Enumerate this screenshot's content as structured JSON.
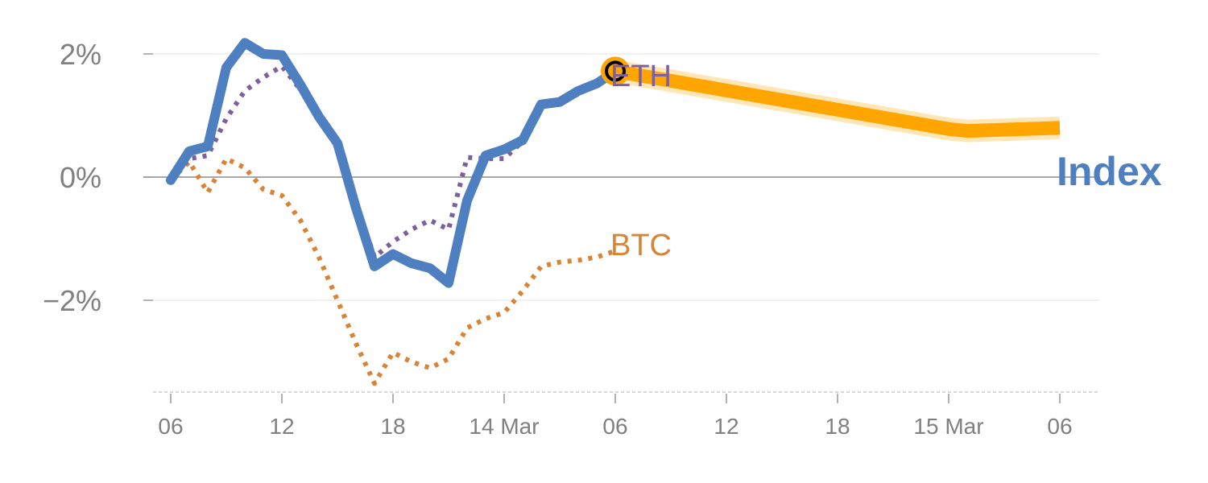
{
  "chart_data": {
    "type": "line",
    "title": "",
    "xlabel": "",
    "ylabel": "",
    "ylim": [
      -3.5,
      2.25
    ],
    "grid": true,
    "legend": "none (direct labels)",
    "x_ticks": [
      {
        "x": 0,
        "label": "06"
      },
      {
        "x": 6,
        "label": "12"
      },
      {
        "x": 12,
        "label": "18"
      },
      {
        "x": 18,
        "label": "14 Mar"
      },
      {
        "x": 24,
        "label": "06"
      },
      {
        "x": 30,
        "label": "12"
      },
      {
        "x": 36,
        "label": "18"
      },
      {
        "x": 42,
        "label": "15 Mar"
      },
      {
        "x": 48,
        "label": "06"
      }
    ],
    "y_ticks": [
      {
        "y": 2,
        "label": "2%"
      },
      {
        "y": 0,
        "label": "0%"
      },
      {
        "y": -2,
        "label": "−2%"
      }
    ],
    "xlim": [
      -1,
      50
    ],
    "series": [
      {
        "name": "Index",
        "color": "#4e7fc0",
        "style": "solid",
        "x": [
          0,
          1,
          2,
          3,
          4,
          5,
          6,
          7,
          8,
          9,
          10,
          11,
          12,
          13,
          14,
          15,
          16,
          17,
          18,
          19,
          20,
          21,
          22,
          23,
          24
        ],
        "y": [
          -0.05,
          0.42,
          0.5,
          1.78,
          2.18,
          2.0,
          1.98,
          1.5,
          0.98,
          0.55,
          -0.5,
          -1.45,
          -1.25,
          -1.4,
          -1.48,
          -1.72,
          -0.38,
          0.35,
          0.45,
          0.6,
          1.18,
          1.22,
          1.4,
          1.52,
          1.72
        ]
      },
      {
        "name": "ETH",
        "color": "#7d5f9e",
        "style": "dotted",
        "x": [
          0,
          1,
          2,
          3,
          4,
          5,
          6,
          7,
          8,
          9,
          10,
          11,
          12,
          13,
          14,
          15,
          16,
          17,
          18,
          19,
          20,
          21,
          22,
          23,
          24
        ],
        "y": [
          -0.05,
          0.3,
          0.35,
          0.95,
          1.4,
          1.62,
          1.8,
          1.42,
          0.95,
          0.55,
          -0.4,
          -1.3,
          -1.05,
          -0.85,
          -0.7,
          -0.85,
          0.32,
          0.3,
          0.3,
          0.58,
          1.15,
          1.2,
          1.35,
          1.5,
          1.68
        ]
      },
      {
        "name": "BTC",
        "color": "#d98335",
        "style": "dotted",
        "x": [
          0,
          1,
          2,
          3,
          4,
          5,
          6,
          7,
          8,
          9,
          10,
          11,
          12,
          13,
          14,
          15,
          16,
          17,
          18,
          19,
          20,
          21,
          22,
          23,
          24
        ],
        "y": [
          -0.05,
          0.25,
          -0.25,
          0.3,
          0.15,
          -0.2,
          -0.3,
          -0.7,
          -1.3,
          -2.0,
          -2.7,
          -3.35,
          -2.85,
          -3.0,
          -3.1,
          -2.95,
          -2.45,
          -2.3,
          -2.2,
          -1.85,
          -1.45,
          -1.38,
          -1.35,
          -1.3,
          -1.2
        ]
      },
      {
        "name": "",
        "color": "#ffa500",
        "style": "thick-band",
        "x": [
          24,
          42,
          43,
          44,
          45,
          48
        ],
        "y": [
          1.72,
          0.78,
          0.75,
          0.76,
          0.77,
          0.8
        ]
      }
    ],
    "marker": {
      "x": 24,
      "y": 1.72
    },
    "zero_line": 0
  }
}
